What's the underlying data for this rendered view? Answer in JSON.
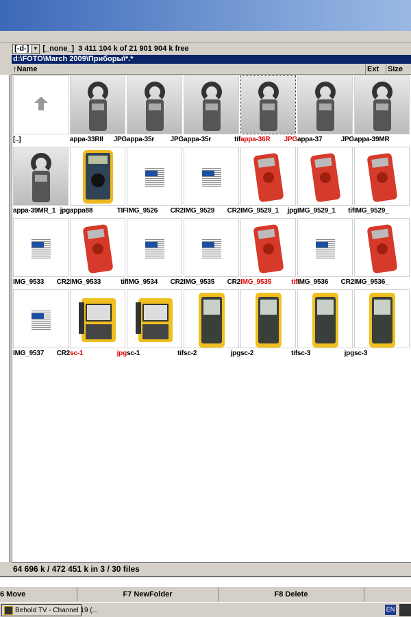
{
  "drivebar": {
    "drive": "[-d-]",
    "label": "[_none_]",
    "free": "3 411 104 k of 21 901 904 k free"
  },
  "path": "d:\\FOTO\\March 2009\\Приборы\\*.*",
  "header": {
    "name": "↑Name",
    "ext": "Ext",
    "size": "Size"
  },
  "files": [
    {
      "name": "[..]",
      "ext": "",
      "kind": "up",
      "selected": false
    },
    {
      "name": "appa-33RII",
      "ext": "JPG",
      "kind": "clamp",
      "selected": false
    },
    {
      "name": "appa-35r",
      "ext": "JPG",
      "kind": "clamp",
      "selected": false
    },
    {
      "name": "appa-35r",
      "ext": "tif",
      "kind": "clamp",
      "selected": false
    },
    {
      "name": "appa-36R",
      "ext": "JPG",
      "kind": "clamp",
      "selected": true,
      "focused": true
    },
    {
      "name": "appa-37",
      "ext": "JPG",
      "kind": "clamp",
      "selected": false
    },
    {
      "name": "appa-39MR",
      "ext": "",
      "kind": "clamp",
      "selected": false
    },
    {
      "name": "appa-39MR_1",
      "ext": "jpg",
      "kind": "clamp",
      "selected": false
    },
    {
      "name": "appa88",
      "ext": "TIF",
      "kind": "yellow",
      "selected": false
    },
    {
      "name": "IMG_9526",
      "ext": "CR2",
      "kind": "cr2",
      "selected": false
    },
    {
      "name": "IMG_9529",
      "ext": "CR2",
      "kind": "cr2",
      "selected": false
    },
    {
      "name": "IMG_9529_1",
      "ext": "jpg",
      "kind": "red",
      "selected": false
    },
    {
      "name": "IMG_9529_1",
      "ext": "tif",
      "kind": "red",
      "selected": false
    },
    {
      "name": "IMG_9529_",
      "ext": "",
      "kind": "red",
      "selected": false
    },
    {
      "name": "IMG_9533",
      "ext": "CR2",
      "kind": "cr2",
      "selected": false
    },
    {
      "name": "IMG_9533",
      "ext": "tif",
      "kind": "red",
      "selected": false
    },
    {
      "name": "IMG_9534",
      "ext": "CR2",
      "kind": "cr2",
      "selected": false
    },
    {
      "name": "IMG_9535",
      "ext": "CR2",
      "kind": "cr2",
      "selected": false
    },
    {
      "name": "IMG_9535",
      "ext": "tif",
      "kind": "red",
      "selected": true
    },
    {
      "name": "IMG_9536",
      "ext": "CR2",
      "kind": "cr2",
      "selected": false
    },
    {
      "name": "IMG_9536_",
      "ext": "",
      "kind": "red",
      "selected": false
    },
    {
      "name": "IMG_9537",
      "ext": "CR2",
      "kind": "cr2",
      "selected": false
    },
    {
      "name": "sc-1",
      "ext": "jpg",
      "kind": "scope",
      "selected": true
    },
    {
      "name": "sc-1",
      "ext": "tif",
      "kind": "scope",
      "selected": false
    },
    {
      "name": "sc-2",
      "ext": "jpg",
      "kind": "handheld",
      "selected": false
    },
    {
      "name": "sc-2",
      "ext": "tif",
      "kind": "handheld",
      "selected": false
    },
    {
      "name": "sc-3",
      "ext": "jpg",
      "kind": "handheld",
      "selected": false
    },
    {
      "name": "sc-3",
      "ext": "",
      "kind": "handheld",
      "selected": false
    }
  ],
  "status": "64 696 k / 472 451 k in 3 / 30 files",
  "fkeys": {
    "f6": "6 Move",
    "f7": "F7 NewFolder",
    "f8": "F8 Delete"
  },
  "taskbar": {
    "task": "Behold TV - Channel 19 (...",
    "lang": "EN"
  },
  "colors": {
    "selected": "#e00000",
    "path_bg": "#0a246a"
  }
}
